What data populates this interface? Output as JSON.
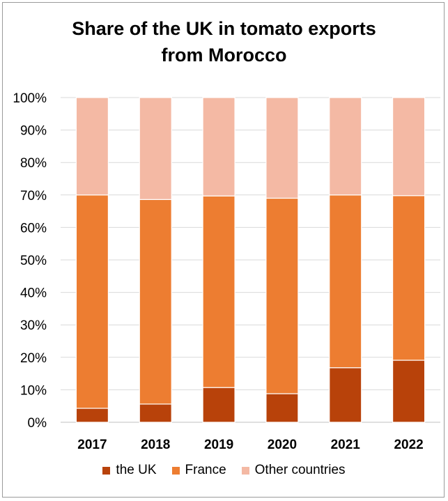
{
  "chart_data": {
    "type": "bar",
    "stacked": true,
    "title": "Share of the UK in tomato exports from Morocco",
    "title_lines": [
      "Share of the UK in tomato exports",
      "from Morocco"
    ],
    "categories": [
      "2017",
      "2018",
      "2019",
      "2020",
      "2021",
      "2022"
    ],
    "series": [
      {
        "name": "the UK",
        "color": "#b8420a",
        "values": [
          4.3,
          5.6,
          10.7,
          8.8,
          16.8,
          19.1
        ]
      },
      {
        "name": "France",
        "color": "#ed7d31",
        "values": [
          65.7,
          63.0,
          59.0,
          60.2,
          53.2,
          50.7
        ]
      },
      {
        "name": "Other countries",
        "color": "#f4b9a4",
        "values": [
          30.0,
          31.4,
          30.3,
          31.0,
          30.0,
          30.2
        ]
      }
    ],
    "ylim": [
      0,
      100
    ],
    "yticks": [
      "0%",
      "10%",
      "20%",
      "30%",
      "40%",
      "50%",
      "60%",
      "70%",
      "80%",
      "90%",
      "100%"
    ],
    "grid": true,
    "legend_position": "bottom"
  }
}
